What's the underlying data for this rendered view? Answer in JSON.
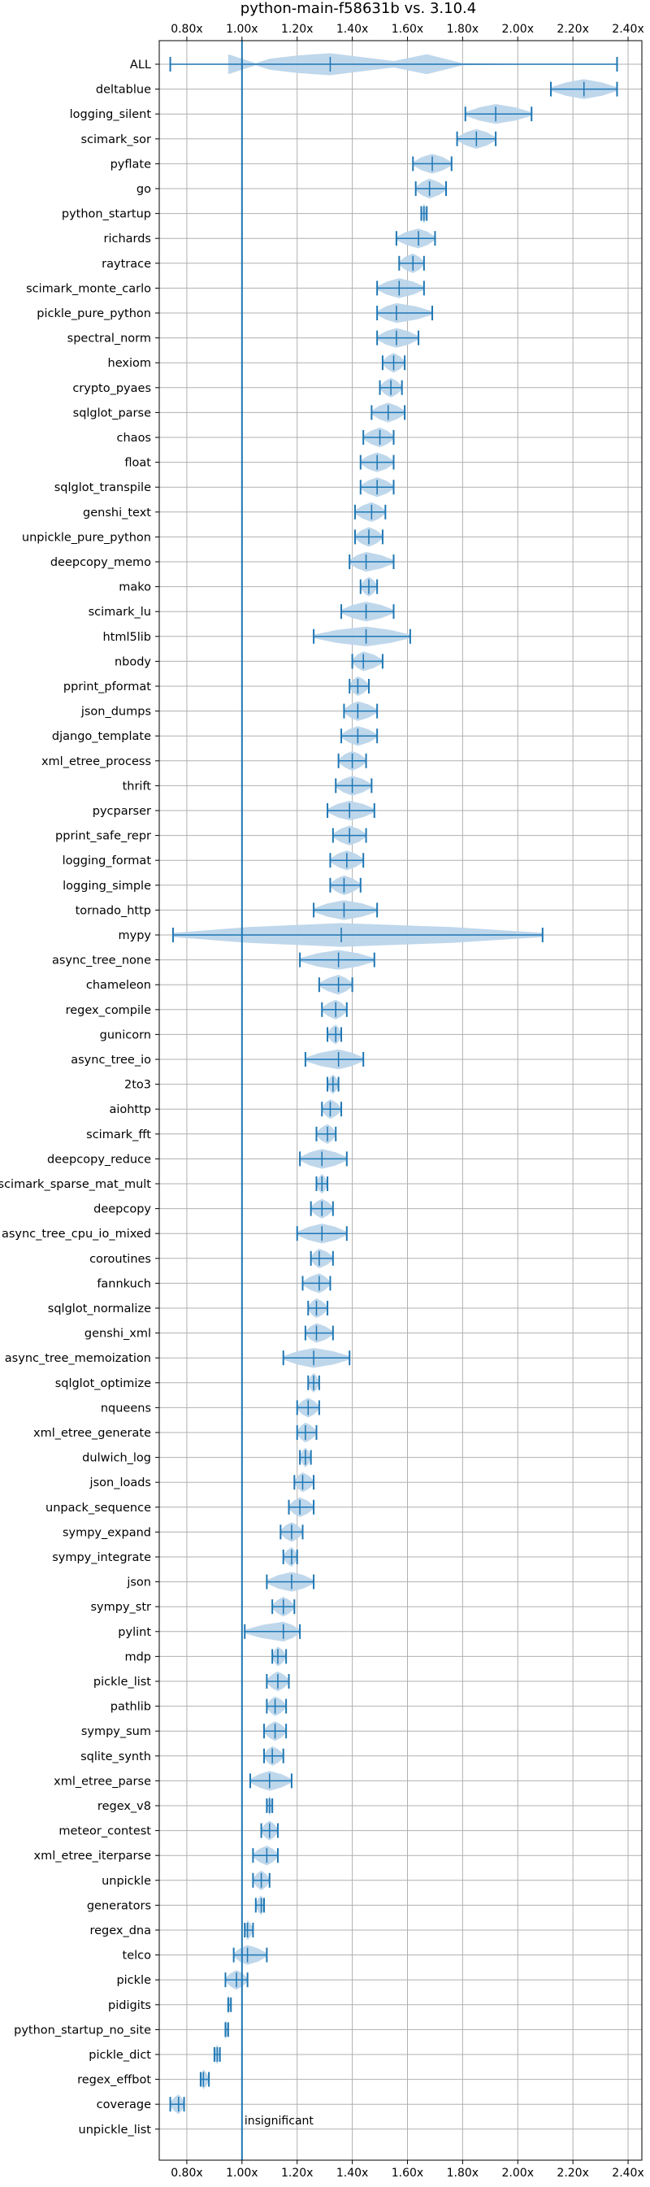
{
  "chart_data": {
    "type": "violin",
    "title": "python-main-f58631b vs. 3.10.4",
    "xlim": [
      0.7,
      2.45
    ],
    "xticks": [
      0.8,
      1.0,
      1.2,
      1.4,
      1.6,
      1.8,
      2.0,
      2.2,
      2.4
    ],
    "xtick_labels": [
      "0.80x",
      "1.00x",
      "1.20x",
      "1.40x",
      "1.60x",
      "1.80x",
      "2.00x",
      "2.20x",
      "2.40x"
    ],
    "reference_line": 1.0,
    "grid": true,
    "colors": {
      "violin": "#bcd5ea",
      "stat": "#1f77b4",
      "grid": "#b0b0b0"
    },
    "annotation": "insignificant",
    "benchmarks": [
      {
        "name": "ALL",
        "min": 0.74,
        "max": 2.36,
        "med": 1.32,
        "kde": [
          [
            0.95,
            0.45
          ],
          [
            1.05,
            0.05
          ],
          [
            1.1,
            0.25
          ],
          [
            1.2,
            0.4
          ],
          [
            1.32,
            0.5
          ],
          [
            1.45,
            0.3
          ],
          [
            1.55,
            0.15
          ],
          [
            1.67,
            0.45
          ],
          [
            1.8,
            0.05
          ],
          [
            2.0,
            0.02
          ],
          [
            2.3,
            0.0
          ]
        ]
      },
      {
        "name": "deltablue",
        "min": 2.12,
        "max": 2.36,
        "med": 2.24
      },
      {
        "name": "logging_silent",
        "min": 1.81,
        "max": 2.05,
        "med": 1.92
      },
      {
        "name": "scimark_sor",
        "min": 1.78,
        "max": 1.92,
        "med": 1.85
      },
      {
        "name": "pyflate",
        "min": 1.62,
        "max": 1.76,
        "med": 1.69
      },
      {
        "name": "go",
        "min": 1.63,
        "max": 1.74,
        "med": 1.68
      },
      {
        "name": "python_startup",
        "min": 1.65,
        "max": 1.67,
        "med": 1.66
      },
      {
        "name": "richards",
        "min": 1.56,
        "max": 1.7,
        "med": 1.64
      },
      {
        "name": "raytrace",
        "min": 1.57,
        "max": 1.66,
        "med": 1.62
      },
      {
        "name": "scimark_monte_carlo",
        "min": 1.49,
        "max": 1.66,
        "med": 1.57
      },
      {
        "name": "pickle_pure_python",
        "min": 1.49,
        "max": 1.69,
        "med": 1.56
      },
      {
        "name": "spectral_norm",
        "min": 1.49,
        "max": 1.64,
        "med": 1.56
      },
      {
        "name": "hexiom",
        "min": 1.51,
        "max": 1.59,
        "med": 1.55
      },
      {
        "name": "crypto_pyaes",
        "min": 1.5,
        "max": 1.58,
        "med": 1.54
      },
      {
        "name": "sqlglot_parse",
        "min": 1.47,
        "max": 1.59,
        "med": 1.53
      },
      {
        "name": "chaos",
        "min": 1.44,
        "max": 1.55,
        "med": 1.5
      },
      {
        "name": "float",
        "min": 1.43,
        "max": 1.55,
        "med": 1.49
      },
      {
        "name": "sqlglot_transpile",
        "min": 1.43,
        "max": 1.55,
        "med": 1.49
      },
      {
        "name": "genshi_text",
        "min": 1.41,
        "max": 1.52,
        "med": 1.47
      },
      {
        "name": "unpickle_pure_python",
        "min": 1.41,
        "max": 1.51,
        "med": 1.46
      },
      {
        "name": "deepcopy_memo",
        "min": 1.39,
        "max": 1.55,
        "med": 1.45
      },
      {
        "name": "mako",
        "min": 1.43,
        "max": 1.49,
        "med": 1.46
      },
      {
        "name": "scimark_lu",
        "min": 1.36,
        "max": 1.55,
        "med": 1.45
      },
      {
        "name": "html5lib",
        "min": 1.26,
        "max": 1.61,
        "med": 1.45
      },
      {
        "name": "nbody",
        "min": 1.4,
        "max": 1.51,
        "med": 1.44
      },
      {
        "name": "pprint_pformat",
        "min": 1.39,
        "max": 1.46,
        "med": 1.42
      },
      {
        "name": "json_dumps",
        "min": 1.37,
        "max": 1.49,
        "med": 1.42
      },
      {
        "name": "django_template",
        "min": 1.36,
        "max": 1.49,
        "med": 1.42
      },
      {
        "name": "xml_etree_process",
        "min": 1.35,
        "max": 1.45,
        "med": 1.4
      },
      {
        "name": "thrift",
        "min": 1.34,
        "max": 1.47,
        "med": 1.4
      },
      {
        "name": "pycparser",
        "min": 1.31,
        "max": 1.48,
        "med": 1.39
      },
      {
        "name": "pprint_safe_repr",
        "min": 1.33,
        "max": 1.45,
        "med": 1.39
      },
      {
        "name": "logging_format",
        "min": 1.32,
        "max": 1.44,
        "med": 1.38
      },
      {
        "name": "logging_simple",
        "min": 1.32,
        "max": 1.43,
        "med": 1.37
      },
      {
        "name": "tornado_http",
        "min": 1.26,
        "max": 1.49,
        "med": 1.37
      },
      {
        "name": "mypy",
        "min": 0.75,
        "max": 2.09,
        "med": 1.36
      },
      {
        "name": "async_tree_none",
        "min": 1.21,
        "max": 1.48,
        "med": 1.35
      },
      {
        "name": "chameleon",
        "min": 1.28,
        "max": 1.4,
        "med": 1.35
      },
      {
        "name": "regex_compile",
        "min": 1.29,
        "max": 1.38,
        "med": 1.34
      },
      {
        "name": "gunicorn",
        "min": 1.31,
        "max": 1.36,
        "med": 1.34
      },
      {
        "name": "async_tree_io",
        "min": 1.23,
        "max": 1.44,
        "med": 1.35
      },
      {
        "name": "2to3",
        "min": 1.31,
        "max": 1.35,
        "med": 1.33
      },
      {
        "name": "aiohttp",
        "min": 1.29,
        "max": 1.36,
        "med": 1.32
      },
      {
        "name": "scimark_fft",
        "min": 1.27,
        "max": 1.34,
        "med": 1.31
      },
      {
        "name": "deepcopy_reduce",
        "min": 1.21,
        "max": 1.38,
        "med": 1.29
      },
      {
        "name": "scimark_sparse_mat_mult",
        "min": 1.27,
        "max": 1.31,
        "med": 1.29
      },
      {
        "name": "deepcopy",
        "min": 1.25,
        "max": 1.33,
        "med": 1.29
      },
      {
        "name": "async_tree_cpu_io_mixed",
        "min": 1.2,
        "max": 1.38,
        "med": 1.29
      },
      {
        "name": "coroutines",
        "min": 1.25,
        "max": 1.33,
        "med": 1.28
      },
      {
        "name": "fannkuch",
        "min": 1.22,
        "max": 1.32,
        "med": 1.28
      },
      {
        "name": "sqlglot_normalize",
        "min": 1.24,
        "max": 1.31,
        "med": 1.27
      },
      {
        "name": "genshi_xml",
        "min": 1.23,
        "max": 1.33,
        "med": 1.27
      },
      {
        "name": "async_tree_memoization",
        "min": 1.15,
        "max": 1.39,
        "med": 1.26
      },
      {
        "name": "sqlglot_optimize",
        "min": 1.24,
        "max": 1.28,
        "med": 1.26
      },
      {
        "name": "nqueens",
        "min": 1.2,
        "max": 1.28,
        "med": 1.24
      },
      {
        "name": "xml_etree_generate",
        "min": 1.2,
        "max": 1.27,
        "med": 1.23
      },
      {
        "name": "dulwich_log",
        "min": 1.21,
        "max": 1.25,
        "med": 1.23
      },
      {
        "name": "json_loads",
        "min": 1.19,
        "max": 1.26,
        "med": 1.22
      },
      {
        "name": "unpack_sequence",
        "min": 1.17,
        "max": 1.26,
        "med": 1.21
      },
      {
        "name": "sympy_expand",
        "min": 1.14,
        "max": 1.22,
        "med": 1.18
      },
      {
        "name": "sympy_integrate",
        "min": 1.15,
        "max": 1.2,
        "med": 1.18
      },
      {
        "name": "json",
        "min": 1.09,
        "max": 1.26,
        "med": 1.18
      },
      {
        "name": "sympy_str",
        "min": 1.11,
        "max": 1.19,
        "med": 1.15
      },
      {
        "name": "pylint",
        "min": 1.01,
        "max": 1.21,
        "med": 1.15
      },
      {
        "name": "mdp",
        "min": 1.11,
        "max": 1.16,
        "med": 1.13
      },
      {
        "name": "pickle_list",
        "min": 1.09,
        "max": 1.17,
        "med": 1.13
      },
      {
        "name": "pathlib",
        "min": 1.09,
        "max": 1.16,
        "med": 1.12
      },
      {
        "name": "sympy_sum",
        "min": 1.08,
        "max": 1.16,
        "med": 1.12
      },
      {
        "name": "sqlite_synth",
        "min": 1.08,
        "max": 1.15,
        "med": 1.11
      },
      {
        "name": "xml_etree_parse",
        "min": 1.03,
        "max": 1.18,
        "med": 1.1
      },
      {
        "name": "regex_v8",
        "min": 1.09,
        "max": 1.11,
        "med": 1.1
      },
      {
        "name": "meteor_contest",
        "min": 1.07,
        "max": 1.13,
        "med": 1.1
      },
      {
        "name": "xml_etree_iterparse",
        "min": 1.04,
        "max": 1.13,
        "med": 1.09
      },
      {
        "name": "unpickle",
        "min": 1.04,
        "max": 1.1,
        "med": 1.07
      },
      {
        "name": "generators",
        "min": 1.05,
        "max": 1.08,
        "med": 1.07
      },
      {
        "name": "regex_dna",
        "min": 1.01,
        "max": 1.04,
        "med": 1.02
      },
      {
        "name": "telco",
        "min": 0.97,
        "max": 1.09,
        "med": 1.02
      },
      {
        "name": "pickle",
        "min": 0.94,
        "max": 1.02,
        "med": 0.98
      },
      {
        "name": "pidigits",
        "min": 0.95,
        "max": 0.96,
        "med": 0.95
      },
      {
        "name": "python_startup_no_site",
        "min": 0.94,
        "max": 0.95,
        "med": 0.94
      },
      {
        "name": "pickle_dict",
        "min": 0.9,
        "max": 0.92,
        "med": 0.91
      },
      {
        "name": "regex_effbot",
        "min": 0.85,
        "max": 0.88,
        "med": 0.86
      },
      {
        "name": "coverage",
        "min": 0.74,
        "max": 0.79,
        "med": 0.77
      },
      {
        "name": "unpickle_list",
        "min": null,
        "max": null,
        "med": null
      }
    ]
  }
}
